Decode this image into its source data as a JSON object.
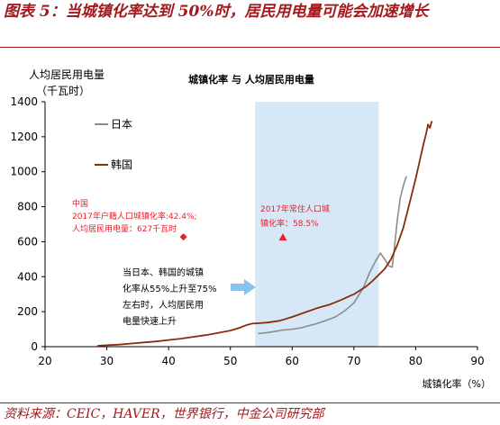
{
  "figure": {
    "title": "图表 5：当城镇化率达到 50%时，居民用电量可能会加速增长",
    "source": "资料来源：CEIC，HAVER，世界银行，中金公司研究部"
  },
  "chart_data": {
    "type": "line",
    "title": "城镇化率 与 人均居民用电量",
    "ylabel_line1": "人均居民用电量",
    "ylabel_line2": "（千瓦时）",
    "xlabel": "城镇化率（%）",
    "xlim": [
      20,
      90
    ],
    "ylim": [
      0,
      1400
    ],
    "xticks": [
      20,
      30,
      40,
      50,
      60,
      70,
      80,
      90
    ],
    "yticks": [
      0,
      200,
      400,
      600,
      800,
      1000,
      1200,
      1400
    ],
    "grid": false,
    "legend_position": "top-left",
    "shaded_band": {
      "x_start": 54,
      "x_end": 74,
      "color": "#d6e8f7"
    },
    "series": [
      {
        "name": "日本",
        "color": "#8c8c8c",
        "x": [
          54.5,
          55.5,
          57,
          58.5,
          59.5,
          60.5,
          61.5,
          62.5,
          64,
          65.5,
          67,
          68.5,
          70,
          71.5,
          72.5,
          73.5,
          74.3,
          75,
          75.7,
          76.2,
          76.6,
          77,
          77.5,
          78,
          78.5
        ],
        "y": [
          75,
          78,
          86,
          95,
          98,
          102,
          108,
          118,
          132,
          150,
          170,
          205,
          250,
          335,
          420,
          490,
          535,
          500,
          460,
          455,
          580,
          720,
          850,
          920,
          975
        ]
      },
      {
        "name": "韩国",
        "color": "#8b2b0c",
        "x": [
          28.5,
          30,
          32,
          34,
          36,
          38,
          40,
          42,
          44,
          46,
          48,
          50,
          51.5,
          52.5,
          53.5,
          54.5,
          56,
          58,
          60,
          62,
          64,
          66,
          68,
          70,
          72,
          73,
          74,
          75,
          76,
          77,
          78,
          79,
          80,
          80.7,
          81.2,
          81.7,
          82,
          82.3,
          82.6
        ],
        "y": [
          5,
          8,
          12,
          18,
          24,
          30,
          38,
          46,
          56,
          66,
          78,
          92,
          108,
          122,
          132,
          134,
          138,
          148,
          170,
          195,
          220,
          240,
          268,
          300,
          345,
          375,
          410,
          445,
          500,
          580,
          680,
          820,
          960,
          1070,
          1150,
          1220,
          1270,
          1250,
          1290
        ]
      }
    ],
    "annotations": [
      {
        "id": "china",
        "lines": [
          "中国",
          "2017年户籍人口城镇化率:42.4%;",
          "人均居民用电量：627千瓦时"
        ],
        "point": {
          "x": 42.4,
          "y": 627
        },
        "marker": "diamond",
        "color": "#e8202a"
      },
      {
        "id": "urban2017",
        "lines": [
          "2017年常住人口城",
          "镇化率：58.5%"
        ],
        "point": {
          "x": 58.5,
          "y": 627
        },
        "marker": "triangle",
        "color": "#e8202a"
      },
      {
        "id": "note",
        "lines": [
          "当日本、韩国的城镇",
          "化率从55%上升至75%",
          "左右时，人均居民用",
          "电量快速上升"
        ],
        "color": "#000000",
        "arrow_color": "#86c4ec"
      }
    ]
  }
}
